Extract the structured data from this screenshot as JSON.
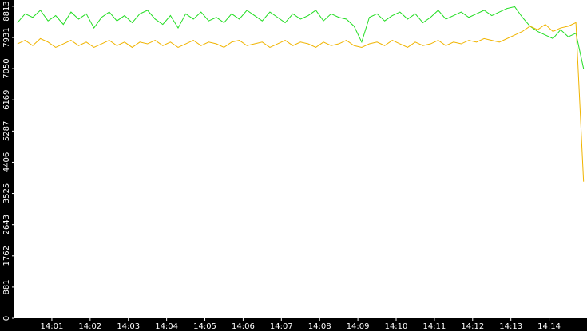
{
  "chart_data": {
    "type": "line",
    "x": [
      0.1,
      0.3,
      0.5,
      0.7,
      0.9,
      1.1,
      1.3,
      1.5,
      1.7,
      1.9,
      2.1,
      2.3,
      2.5,
      2.7,
      2.9,
      3.1,
      3.3,
      3.5,
      3.7,
      3.9,
      4.1,
      4.3,
      4.5,
      4.7,
      4.9,
      5.1,
      5.3,
      5.5,
      5.7,
      5.9,
      6.1,
      6.3,
      6.5,
      6.7,
      6.9,
      7.1,
      7.3,
      7.5,
      7.7,
      7.9,
      8.1,
      8.3,
      8.5,
      8.7,
      8.9,
      9.1,
      9.3,
      9.5,
      9.7,
      9.9,
      10.1,
      10.3,
      10.5,
      10.7,
      10.9,
      11.1,
      11.3,
      11.5,
      11.7,
      11.9,
      12.1,
      12.3,
      12.5,
      12.7,
      12.9,
      13.1,
      13.3,
      13.5,
      13.7,
      13.9,
      14.1,
      14.3,
      14.5,
      14.7,
      14.9
    ],
    "series": [
      {
        "color": "#22dd22",
        "values": [
          8350,
          8600,
          8500,
          8700,
          8400,
          8550,
          8300,
          8650,
          8450,
          8600,
          8200,
          8500,
          8650,
          8400,
          8550,
          8350,
          8600,
          8700,
          8450,
          8300,
          8550,
          8200,
          8600,
          8450,
          8650,
          8400,
          8500,
          8350,
          8600,
          8450,
          8700,
          8550,
          8400,
          8650,
          8500,
          8350,
          8600,
          8450,
          8550,
          8700,
          8400,
          8600,
          8500,
          8450,
          8250,
          7800,
          8500,
          8600,
          8400,
          8550,
          8650,
          8450,
          8600,
          8350,
          8500,
          8700,
          8450,
          8550,
          8650,
          8500,
          8600,
          8700,
          8550,
          8650,
          8750,
          8800,
          8500,
          8250,
          8100,
          8000,
          7900,
          8150,
          7950,
          8050,
          7050
        ]
      },
      {
        "color": "#f0b400",
        "values": [
          7750,
          7850,
          7700,
          7900,
          7800,
          7650,
          7750,
          7850,
          7700,
          7800,
          7650,
          7750,
          7850,
          7700,
          7800,
          7650,
          7800,
          7750,
          7850,
          7700,
          7800,
          7650,
          7750,
          7850,
          7700,
          7800,
          7750,
          7650,
          7800,
          7850,
          7700,
          7750,
          7800,
          7650,
          7750,
          7850,
          7700,
          7800,
          7750,
          7650,
          7800,
          7700,
          7750,
          7850,
          7700,
          7650,
          7750,
          7800,
          7700,
          7850,
          7750,
          7650,
          7800,
          7700,
          7750,
          7850,
          7700,
          7800,
          7750,
          7850,
          7800,
          7900,
          7850,
          7800,
          7900,
          8000,
          8100,
          8250,
          8150,
          8300,
          8100,
          8200,
          8250,
          8350,
          3860
        ]
      }
    ],
    "xlim": [
      0.02,
      14.99
    ],
    "xticks": [
      {
        "value": 1,
        "label": "14:01"
      },
      {
        "value": 2,
        "label": "14:02"
      },
      {
        "value": 3,
        "label": "14:03"
      },
      {
        "value": 4,
        "label": "14:04"
      },
      {
        "value": 5,
        "label": "14:05"
      },
      {
        "value": 6,
        "label": "14:06"
      },
      {
        "value": 7,
        "label": "14:07"
      },
      {
        "value": 8,
        "label": "14:08"
      },
      {
        "value": 9,
        "label": "14:09"
      },
      {
        "value": 10,
        "label": "14:10"
      },
      {
        "value": 11,
        "label": "14:11"
      },
      {
        "value": 12,
        "label": "14:12"
      },
      {
        "value": 13,
        "label": "14:13"
      },
      {
        "value": 14,
        "label": "14:14"
      }
    ],
    "ylim": [
      0,
      8990
    ],
    "yticks": [
      0,
      881,
      1762,
      2643,
      3525,
      4406,
      5287,
      6169,
      7050,
      7931,
      8813
    ]
  }
}
